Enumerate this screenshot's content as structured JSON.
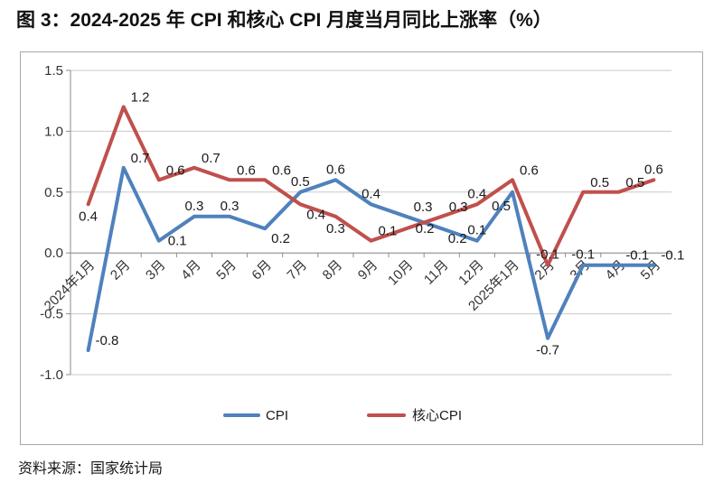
{
  "page": {
    "title": "图 3：2024-2025 年 CPI 和核心 CPI 月度当月同比上涨率（%）",
    "source": "资料来源：国家统计局"
  },
  "chart_data": {
    "type": "line",
    "title": "2024-2025 年 CPI 和核心 CPI 月度当月同比上涨率（%）",
    "categories": [
      "2024年1月",
      "2月",
      "3月",
      "4月",
      "5月",
      "6月",
      "7月",
      "8月",
      "9月",
      "10月",
      "11月",
      "12月",
      "2025年1月",
      "2月",
      "3月",
      "4月",
      "5月"
    ],
    "series": [
      {
        "name": "CPI",
        "color": "#4F81BD",
        "values": [
          -0.8,
          0.7,
          0.1,
          0.3,
          0.3,
          0.2,
          0.5,
          0.6,
          0.4,
          0.3,
          0.2,
          0.1,
          0.5,
          -0.7,
          -0.1,
          -0.1,
          -0.1
        ],
        "label_positions": [
          "above-right",
          "above-right",
          "right",
          "above",
          "above",
          "below-right",
          "above",
          "above",
          "above",
          "above-right",
          "below-right",
          "above",
          "below-left",
          "below",
          "above",
          "above-right",
          "above-right"
        ]
      },
      {
        "name": "核心CPI",
        "color": "#C0504D",
        "values": [
          0.4,
          1.2,
          0.6,
          0.7,
          0.6,
          0.6,
          0.4,
          0.3,
          0.1,
          0.2,
          0.3,
          0.4,
          0.6,
          -0.1,
          0.5,
          0.5,
          0.6
        ],
        "label_positions": [
          "below",
          "above-right",
          "above-right",
          "above-right",
          "above-right",
          "above-right",
          "below-right",
          "below",
          "above-right",
          "right",
          "above-right",
          "above",
          "above-right",
          "above",
          "above-right",
          "above-right",
          "above"
        ]
      }
    ],
    "y_axis": {
      "min": -1.0,
      "max": 1.5,
      "step": 0.5,
      "tick_labels": [
        "1.5",
        "1.0",
        "0.5",
        "0.0",
        "-0.5",
        "-1.0"
      ]
    },
    "xlabel": "",
    "ylabel": "",
    "grid": true,
    "data_labels": true,
    "legend_position": "bottom",
    "colors": {
      "gridline": "#c8c8c8",
      "axis": "#8c8c8c",
      "tick_text": "#333333",
      "label_text": "#1a1a1a"
    }
  }
}
